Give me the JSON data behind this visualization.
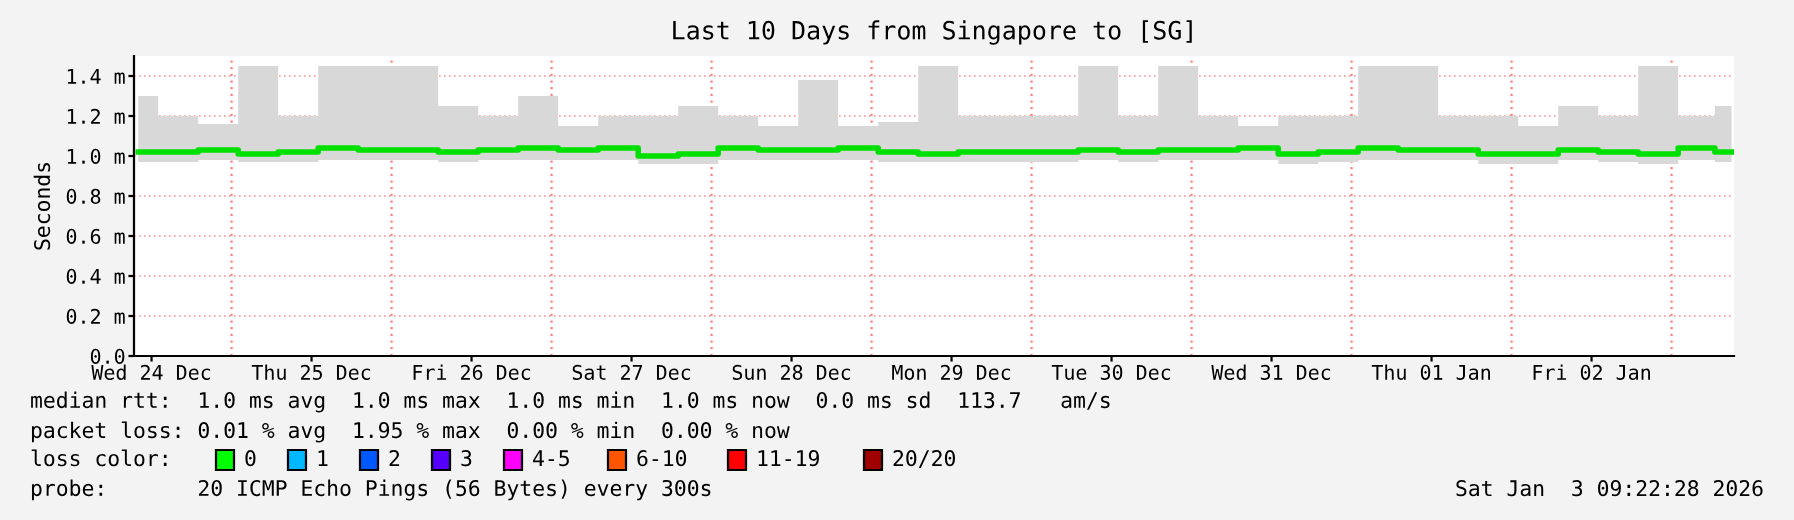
{
  "chart_data": {
    "type": "step",
    "title": "Last 10 Days from Singapore to [SG]",
    "ylabel": "Seconds",
    "x": [
      "2025-12-24T10:00",
      "2025-12-24T16:00",
      "2025-12-24T22:00",
      "2025-12-25T04:00",
      "2025-12-25T10:00",
      "2025-12-25T16:00",
      "2025-12-25T22:00",
      "2025-12-26T04:00",
      "2025-12-26T10:00",
      "2025-12-26T16:00",
      "2025-12-26T22:00",
      "2025-12-27T04:00",
      "2025-12-27T10:00",
      "2025-12-27T16:00",
      "2025-12-27T22:00",
      "2025-12-28T04:00",
      "2025-12-28T10:00",
      "2025-12-28T16:00",
      "2025-12-28T22:00",
      "2025-12-29T04:00",
      "2025-12-29T10:00",
      "2025-12-29T16:00",
      "2025-12-29T22:00",
      "2025-12-30T04:00",
      "2025-12-30T10:00",
      "2025-12-30T16:00",
      "2025-12-30T22:00",
      "2025-12-31T04:00",
      "2025-12-31T10:00",
      "2025-12-31T16:00",
      "2025-12-31T22:00",
      "2026-01-01T04:00",
      "2026-01-01T10:00",
      "2026-01-01T16:00",
      "2026-01-01T22:00",
      "2026-01-02T04:00",
      "2026-01-02T10:00",
      "2026-01-02T16:00",
      "2026-01-02T22:00",
      "2026-01-03T04:00",
      "2026-01-03T09:00"
    ],
    "series": [
      {
        "color": "#00e000",
        "values": [
          1.02,
          1.02,
          1.03,
          1.01,
          1.02,
          1.04,
          1.03,
          1.03,
          1.02,
          1.03,
          1.04,
          1.03,
          1.04,
          1.0,
          1.01,
          1.04,
          1.03,
          1.03,
          1.04,
          1.02,
          1.01,
          1.02,
          1.02,
          1.02,
          1.03,
          1.02,
          1.03,
          1.03,
          1.04,
          1.01,
          1.02,
          1.04,
          1.03,
          1.03,
          1.01,
          1.01,
          1.03,
          1.02,
          1.01,
          1.04,
          1.02
        ],
        "lower": [
          0.97,
          0.97,
          0.98,
          0.97,
          0.97,
          0.98,
          0.98,
          0.98,
          0.97,
          0.98,
          0.98,
          0.98,
          0.98,
          0.96,
          0.96,
          0.98,
          0.98,
          0.98,
          0.98,
          0.97,
          0.97,
          0.97,
          0.97,
          0.97,
          0.98,
          0.97,
          0.98,
          0.98,
          0.98,
          0.96,
          0.97,
          0.98,
          0.98,
          0.98,
          0.96,
          0.96,
          0.98,
          0.97,
          0.96,
          0.98,
          0.97
        ],
        "upper": [
          1.3,
          1.2,
          1.16,
          1.45,
          1.2,
          1.45,
          1.45,
          1.45,
          1.25,
          1.2,
          1.3,
          1.15,
          1.2,
          1.2,
          1.25,
          1.2,
          1.15,
          1.38,
          1.15,
          1.17,
          1.45,
          1.2,
          1.2,
          1.2,
          1.45,
          1.2,
          1.45,
          1.2,
          1.15,
          1.2,
          1.2,
          1.45,
          1.45,
          1.2,
          1.2,
          1.15,
          1.25,
          1.2,
          1.45,
          1.2,
          1.25
        ]
      }
    ],
    "xlim": [
      "2025-12-24T09:22",
      "2026-01-03T09:22"
    ],
    "ylim": [
      0,
      1.5
    ],
    "xticks": [
      {
        "value": "2025-12-24T12:00",
        "label": "Wed 24 Dec"
      },
      {
        "value": "2025-12-25T12:00",
        "label": "Thu 25 Dec"
      },
      {
        "value": "2025-12-26T12:00",
        "label": "Fri 26 Dec"
      },
      {
        "value": "2025-12-27T12:00",
        "label": "Sat 27 Dec"
      },
      {
        "value": "2025-12-28T12:00",
        "label": "Sun 28 Dec"
      },
      {
        "value": "2025-12-29T12:00",
        "label": "Mon 29 Dec"
      },
      {
        "value": "2025-12-30T12:00",
        "label": "Tue 30 Dec"
      },
      {
        "value": "2025-12-31T12:00",
        "label": "Wed 31 Dec"
      },
      {
        "value": "2026-01-01T12:00",
        "label": "Thu 01 Jan"
      },
      {
        "value": "2026-01-02T12:00",
        "label": "Fri 02 Jan"
      }
    ],
    "yticks": [
      {
        "value": 0,
        "label": "0.0"
      },
      {
        "value": 0.2,
        "label": "0.2 m"
      },
      {
        "value": 0.4,
        "label": "0.4 m"
      },
      {
        "value": 0.6,
        "label": "0.6 m"
      },
      {
        "value": 0.8,
        "label": "0.8 m"
      },
      {
        "value": 1.0,
        "label": "1.0 m"
      },
      {
        "value": 1.2,
        "label": "1.2 m"
      },
      {
        "value": 1.4,
        "label": "1.4 m"
      }
    ],
    "ref_lines": [
      {
        "axis": "x",
        "value": "2025-12-25",
        "color": "#ff8080",
        "line_style": "dotted"
      },
      {
        "axis": "x",
        "value": "2025-12-26",
        "color": "#ff8080",
        "line_style": "dotted"
      },
      {
        "axis": "x",
        "value": "2025-12-27",
        "color": "#ff8080",
        "line_style": "dotted"
      },
      {
        "axis": "x",
        "value": "2025-12-28",
        "color": "#ff8080",
        "line_style": "dotted"
      },
      {
        "axis": "x",
        "value": "2025-12-29",
        "color": "#ff8080",
        "line_style": "dotted"
      },
      {
        "axis": "x",
        "value": "2025-12-30",
        "color": "#ff8080",
        "line_style": "dotted"
      },
      {
        "axis": "x",
        "value": "2025-12-31",
        "color": "#ff8080",
        "line_style": "dotted"
      },
      {
        "axis": "x",
        "value": "2026-01-01",
        "color": "#ff8080",
        "line_style": "dotted"
      },
      {
        "axis": "x",
        "value": "2026-01-02",
        "color": "#ff8080",
        "line_style": "dotted"
      },
      {
        "axis": "x",
        "value": "2026-01-03",
        "color": "#ff8080",
        "line_style": "dotted"
      }
    ],
    "grid": "y",
    "annotations": [
      "median rtt:  1.0 ms avg  1.0 ms max  1.0 ms min  1.0 ms now  0.0 ms sd  113.7   am/s",
      "packet loss: 0.01 % avg  1.95 % max  0.00 % min  0.00 % now",
      "loss color:",
      "0",
      "1",
      "2",
      "3",
      "4-5",
      "6-10",
      "11-19",
      "20/20",
      "probe:       20 ICMP Echo Pings (56 Bytes) every 300s",
      "Sat Jan  3 09:22:28 2026"
    ]
  }
}
